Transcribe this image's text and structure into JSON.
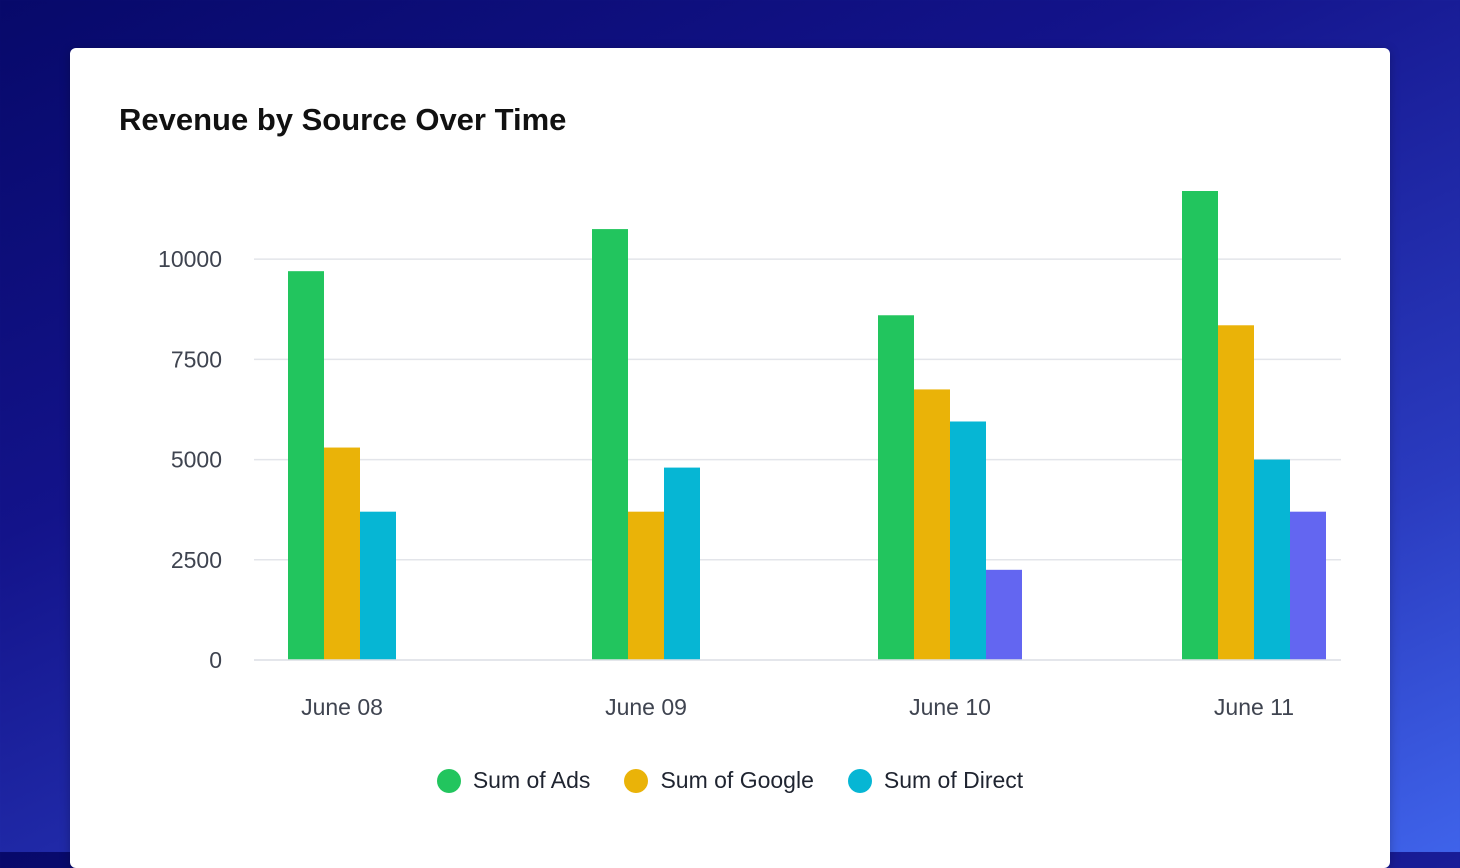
{
  "chart_data": {
    "type": "bar",
    "title": "Revenue by Source Over Time",
    "xlabel": "",
    "ylabel": "",
    "categories": [
      "June 08",
      "June 09",
      "June 10",
      "June 11"
    ],
    "ylim": [
      0,
      11700
    ],
    "yticks": [
      0,
      2500,
      5000,
      7500,
      10000
    ],
    "grid": true,
    "legend_position": "bottom",
    "series": [
      {
        "name": "Sum of Ads",
        "color": "#22c55e",
        "values": [
          9700,
          10750,
          8600,
          11700
        ]
      },
      {
        "name": "Sum of Google",
        "color": "#eab308",
        "values": [
          5300,
          3700,
          6750,
          8350
        ]
      },
      {
        "name": "Sum of Direct",
        "color": "#06b6d4",
        "values": [
          3700,
          4800,
          5950,
          5000
        ]
      },
      {
        "color": "#6366f1",
        "values": [
          0,
          0,
          2250,
          3700
        ]
      }
    ]
  }
}
